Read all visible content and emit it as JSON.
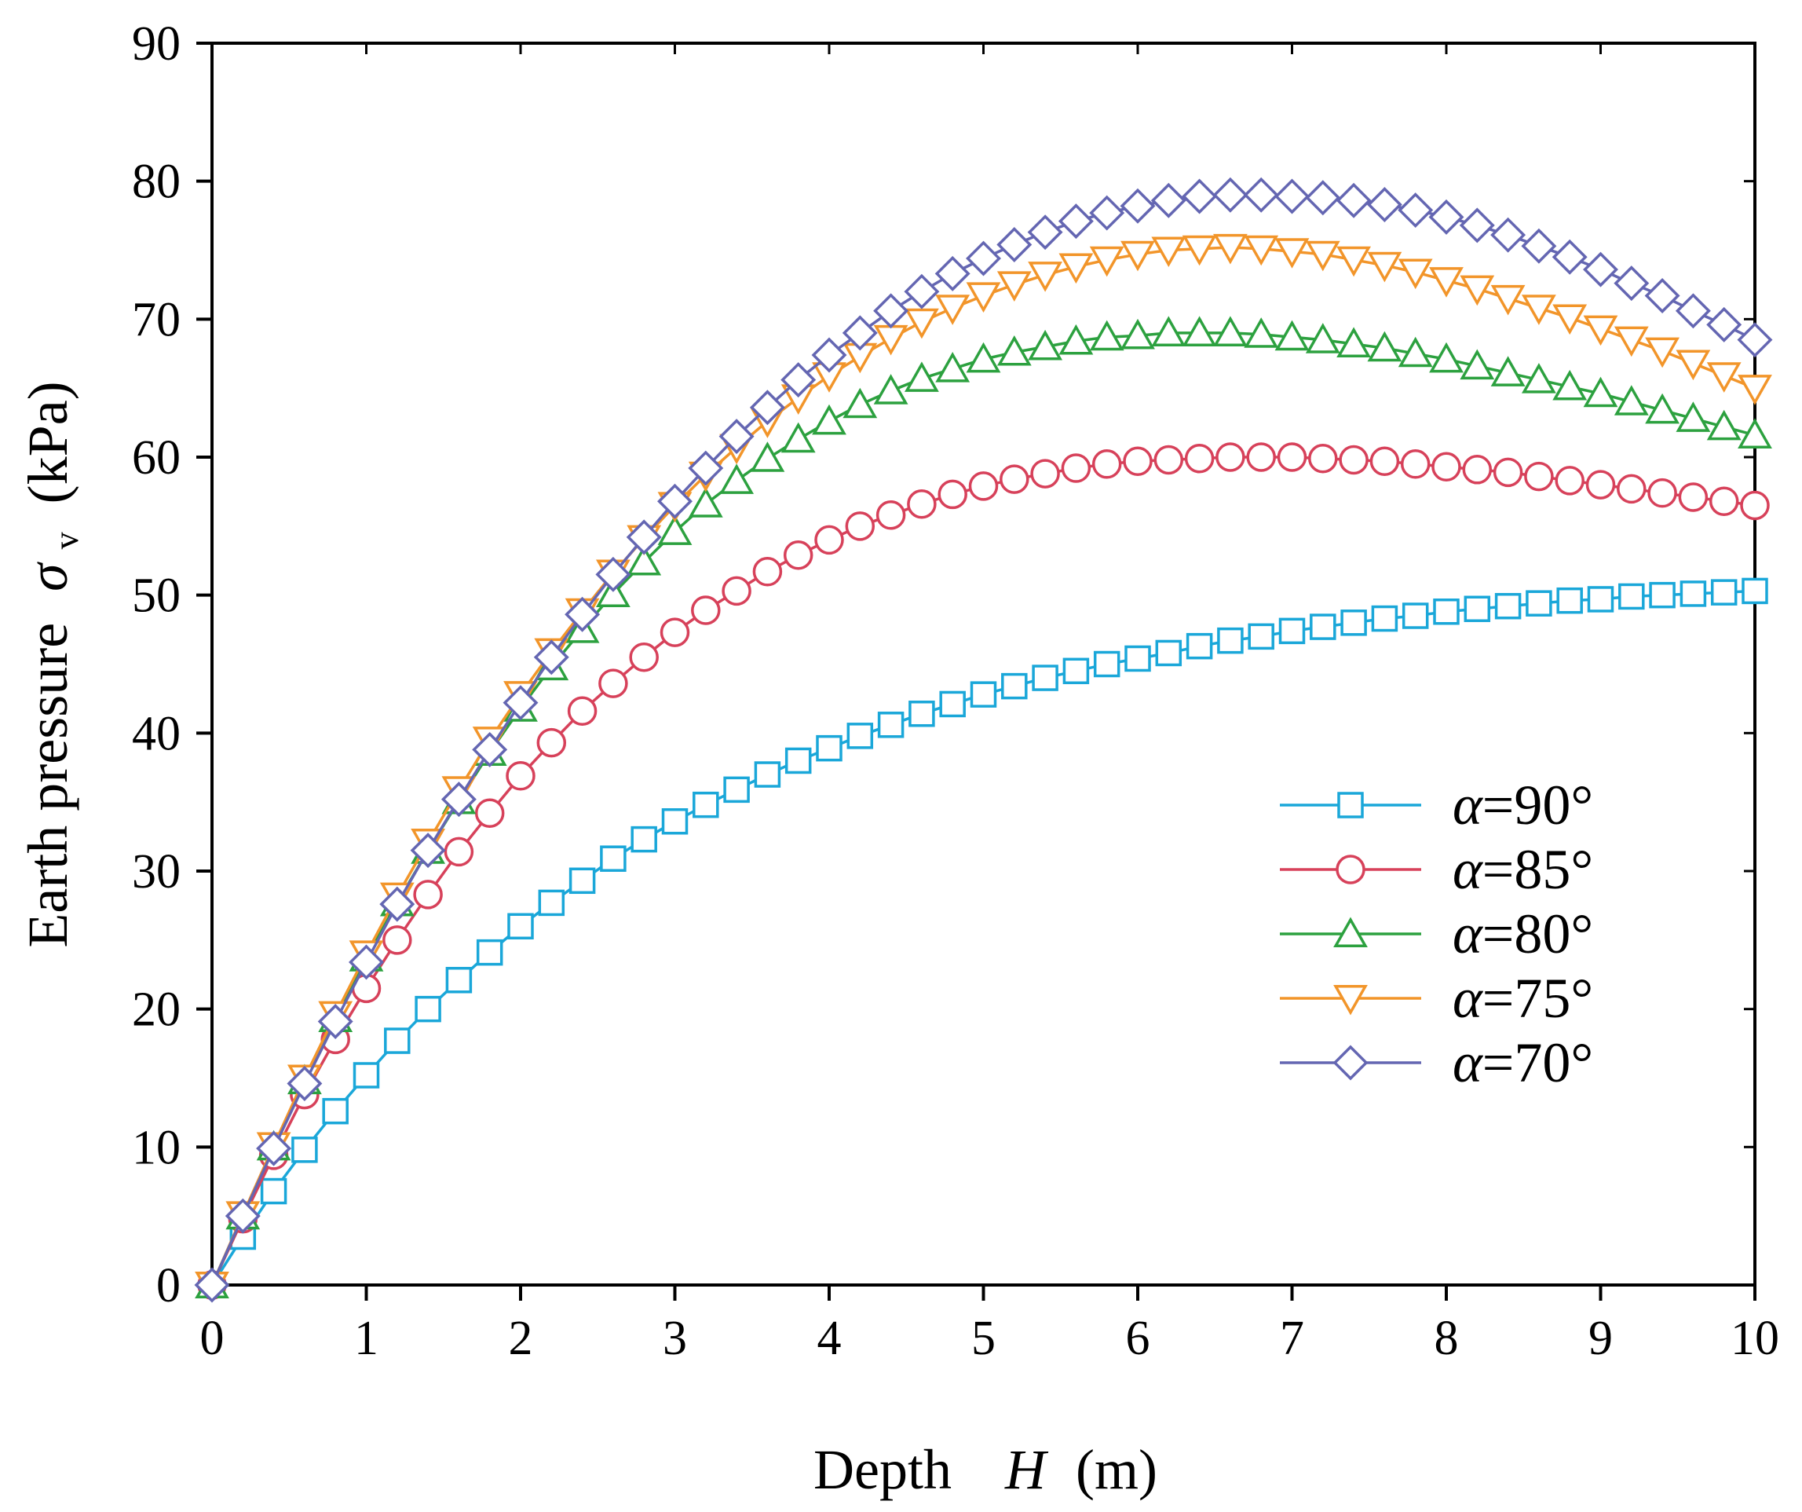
{
  "chart_data": {
    "type": "line",
    "title": "",
    "xlabel": "Depth",
    "xlabel_var": "H",
    "xlabel_unit": "(m)",
    "ylabel": "Earth pressure",
    "ylabel_var": "σ",
    "ylabel_sub": "v",
    "ylabel_unit": "(kPa)",
    "xlim": [
      0,
      10
    ],
    "ylim": [
      0,
      90
    ],
    "xticks": [
      0,
      1,
      2,
      3,
      4,
      5,
      6,
      7,
      8,
      9,
      10
    ],
    "yticks": [
      0,
      10,
      20,
      30,
      40,
      50,
      60,
      70,
      80,
      90
    ],
    "grid": false,
    "legend_position": "bottom-right",
    "x": [
      0,
      0.2,
      0.4,
      0.6,
      0.8,
      1.0,
      1.2,
      1.4,
      1.6,
      1.8,
      2.0,
      2.2,
      2.4,
      2.6,
      2.8,
      3.0,
      3.2,
      3.4,
      3.6,
      3.8,
      4.0,
      4.2,
      4.4,
      4.6,
      4.8,
      5.0,
      5.2,
      5.4,
      5.6,
      5.8,
      6.0,
      6.2,
      6.4,
      6.6,
      6.8,
      7.0,
      7.2,
      7.4,
      7.6,
      7.8,
      8.0,
      8.2,
      8.4,
      8.6,
      8.8,
      9.0,
      9.2,
      9.4,
      9.6,
      9.8,
      10.0
    ],
    "series": [
      {
        "name": "α=90°",
        "var": "α",
        "label": "=90°",
        "color": "#1aa7d9",
        "marker": "square",
        "values": [
          0,
          3.5,
          6.8,
          9.8,
          12.6,
          15.2,
          17.7,
          20.0,
          22.1,
          24.1,
          26.0,
          27.7,
          29.3,
          30.9,
          32.3,
          33.6,
          34.8,
          35.9,
          37.0,
          38.0,
          38.9,
          39.8,
          40.6,
          41.4,
          42.1,
          42.8,
          43.4,
          44.0,
          44.5,
          45.0,
          45.4,
          45.8,
          46.3,
          46.7,
          47.0,
          47.4,
          47.7,
          48.0,
          48.3,
          48.5,
          48.8,
          49.0,
          49.2,
          49.4,
          49.6,
          49.7,
          49.9,
          50.0,
          50.1,
          50.2,
          50.3
        ]
      },
      {
        "name": "α=85°",
        "var": "α",
        "label": "=85°",
        "color": "#d7415a",
        "marker": "circle",
        "values": [
          0,
          4.8,
          9.4,
          13.8,
          17.8,
          21.5,
          25.0,
          28.3,
          31.4,
          34.2,
          36.9,
          39.3,
          41.6,
          43.6,
          45.5,
          47.3,
          48.9,
          50.3,
          51.7,
          52.9,
          54.0,
          55.0,
          55.8,
          56.6,
          57.3,
          57.9,
          58.4,
          58.8,
          59.2,
          59.5,
          59.7,
          59.8,
          59.9,
          60.0,
          60.0,
          60.0,
          59.9,
          59.8,
          59.7,
          59.5,
          59.3,
          59.1,
          58.9,
          58.6,
          58.3,
          58.0,
          57.7,
          57.4,
          57.1,
          56.8,
          56.5
        ]
      },
      {
        "name": "α=80°",
        "var": "α",
        "label": "=80°",
        "color": "#2ca13f",
        "marker": "triangle-up",
        "values": [
          0,
          5.0,
          10.0,
          14.8,
          19.3,
          23.7,
          27.7,
          31.5,
          35.1,
          38.6,
          41.8,
          44.8,
          47.5,
          50.1,
          52.4,
          54.6,
          56.6,
          58.3,
          59.9,
          61.3,
          62.6,
          63.8,
          64.8,
          65.7,
          66.4,
          67.1,
          67.6,
          68.0,
          68.4,
          68.7,
          68.8,
          69.0,
          69.0,
          69.0,
          68.9,
          68.7,
          68.5,
          68.2,
          67.9,
          67.5,
          67.1,
          66.6,
          66.1,
          65.6,
          65.1,
          64.6,
          64.0,
          63.4,
          62.8,
          62.2,
          61.6
        ]
      },
      {
        "name": "α=75°",
        "var": "α",
        "label": "=75°",
        "color": "#f2952a",
        "marker": "triangle-down",
        "values": [
          0,
          5.1,
          10.1,
          15.0,
          19.6,
          24.0,
          28.2,
          32.1,
          35.9,
          39.5,
          42.8,
          45.9,
          48.8,
          51.6,
          54.1,
          56.5,
          58.7,
          60.7,
          62.6,
          64.3,
          65.9,
          67.3,
          68.6,
          69.8,
          70.8,
          71.7,
          72.5,
          73.2,
          73.8,
          74.3,
          74.7,
          75.0,
          75.1,
          75.2,
          75.1,
          74.9,
          74.7,
          74.3,
          73.9,
          73.4,
          72.8,
          72.2,
          71.5,
          70.8,
          70.1,
          69.3,
          68.5,
          67.7,
          66.8,
          65.9,
          65.0
        ]
      },
      {
        "name": "α=70°",
        "var": "α",
        "label": "=70°",
        "color": "#6466b2",
        "marker": "diamond",
        "values": [
          0,
          5.0,
          9.9,
          14.6,
          19.1,
          23.4,
          27.6,
          31.5,
          35.2,
          38.8,
          42.2,
          45.5,
          48.6,
          51.5,
          54.2,
          56.8,
          59.2,
          61.5,
          63.6,
          65.6,
          67.4,
          69.0,
          70.6,
          72.0,
          73.3,
          74.4,
          75.4,
          76.3,
          77.1,
          77.7,
          78.2,
          78.6,
          78.9,
          79.0,
          79.0,
          78.9,
          78.8,
          78.6,
          78.3,
          77.9,
          77.4,
          76.8,
          76.1,
          75.3,
          74.5,
          73.6,
          72.6,
          71.7,
          70.6,
          69.6,
          68.5
        ]
      }
    ]
  }
}
